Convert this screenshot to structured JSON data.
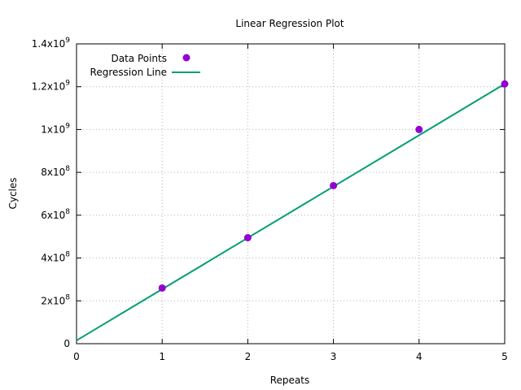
{
  "chart_data": {
    "type": "line",
    "title": "Linear Regression Plot",
    "xlabel": "Repeats",
    "ylabel": "Cycles",
    "xlim": [
      0,
      5
    ],
    "ylim": [
      0,
      1400000000
    ],
    "grid": true,
    "legend_position": "top-left",
    "x_ticks": [
      "0",
      "1",
      "2",
      "3",
      "4",
      "5"
    ],
    "y_ticks": [
      {
        "value": 0,
        "mantissa": "0",
        "exp": ""
      },
      {
        "value": 200000000,
        "mantissa": "2x10",
        "exp": "8"
      },
      {
        "value": 400000000,
        "mantissa": "4x10",
        "exp": "8"
      },
      {
        "value": 600000000,
        "mantissa": "6x10",
        "exp": "8"
      },
      {
        "value": 800000000,
        "mantissa": "8x10",
        "exp": "8"
      },
      {
        "value": 1000000000,
        "mantissa": "1x10",
        "exp": "9"
      },
      {
        "value": 1200000000,
        "mantissa": "1.2x10",
        "exp": "9"
      },
      {
        "value": 1400000000,
        "mantissa": "1.4x10",
        "exp": "9"
      }
    ],
    "series": [
      {
        "name": "Data Points",
        "kind": "scatter",
        "color": "#9400d3",
        "x": [
          1,
          2,
          3,
          4,
          5
        ],
        "y": [
          260000000,
          495000000,
          738000000,
          1000000000,
          1213000000
        ]
      },
      {
        "name": "Regression Line",
        "kind": "line",
        "color": "#009e73",
        "x": [
          0,
          5
        ],
        "y": [
          15000000,
          1213000000
        ]
      }
    ]
  }
}
